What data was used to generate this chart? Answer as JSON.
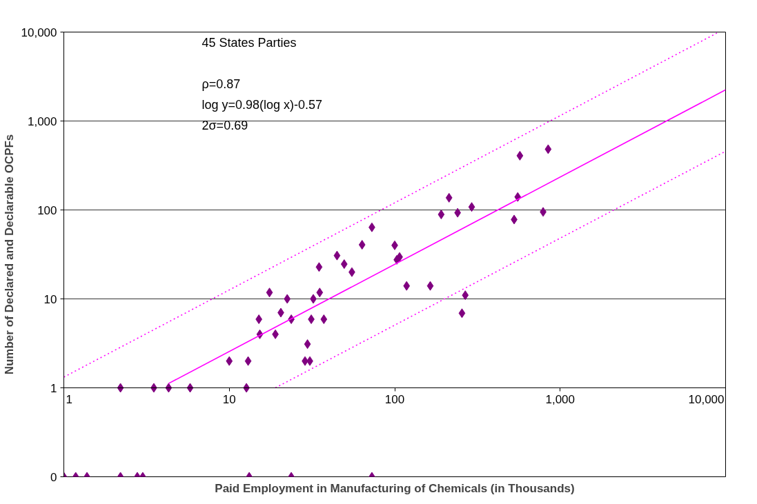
{
  "chart_data": {
    "type": "scatter",
    "xlabel": "Paid Employment in Manufacturing of Chemicals (in Thousands)",
    "ylabel": "Number of Declared and Declarable OCPFs",
    "annotations": [
      "45 States Parties",
      "ρ=0.87",
      "log y=0.98(log x)-0.57",
      "2σ=0.69"
    ],
    "log": "xy",
    "grid": "y",
    "marker": "diamond",
    "xlim": [
      1,
      10000
    ],
    "xticks": [
      1,
      10,
      100,
      {
        "value": 1000,
        "label": "1,000"
      },
      {
        "value": 10000,
        "label": "10,000"
      }
    ],
    "ylim": [
      0.1,
      10000
    ],
    "yticks": [
      {
        "value": 0.1,
        "label": "0"
      },
      1,
      10,
      100,
      {
        "value": 1000,
        "label": "1,000"
      },
      {
        "value": 10000,
        "label": "10,000"
      }
    ],
    "series": [
      {
        "color": "#800080",
        "x": [
          2.2,
          3.5,
          4.3,
          5.8,
          12.7,
          1.0,
          1.18,
          1.38,
          2.2,
          2.78,
          3.0,
          13.2,
          23.7,
          72.8,
          10,
          13,
          28.7,
          30.7,
          29.7,
          15.3,
          19,
          15.1,
          23.7,
          31.3,
          37.3,
          20.5,
          22.4,
          32.2,
          17.5,
          35.2,
          34.9,
          49.5,
          44.8,
          55.1,
          63.5,
          72.8,
          100,
          103,
          107,
          118,
          164,
          191,
          213,
          240,
          292,
          267,
          255,
          527,
          554,
          571,
          789,
          846
        ],
        "values": [
          1,
          1,
          1,
          1,
          1,
          0.1,
          0.1,
          0.1,
          0.1,
          0.1,
          0.1,
          0.1,
          0.1,
          0.1,
          2,
          2,
          2,
          2,
          3.1,
          4,
          4,
          5.9,
          5.9,
          5.9,
          5.9,
          7,
          10,
          10,
          11.8,
          11.8,
          22.8,
          24.6,
          30.7,
          20,
          40.6,
          63.8,
          40,
          27.5,
          29.6,
          14,
          14,
          89,
          137,
          93,
          108,
          11,
          6.9,
          78,
          140,
          407,
          95,
          482
        ]
      },
      {
        "type": "line",
        "marker": "none",
        "color": "#ff00ff",
        "line_style": "solid",
        "x": [
          4.3,
          10000
        ],
        "values": [
          1.12,
          2240
        ]
      },
      {
        "type": "line",
        "marker": "none",
        "color": "#ff00ff",
        "line_style": "dotted",
        "x": [
          1,
          9100
        ],
        "values": [
          1.32,
          10000
        ]
      },
      {
        "type": "line",
        "marker": "none",
        "color": "#ff00ff",
        "line_style": "dotted",
        "x": [
          19,
          10000
        ],
        "values": [
          1,
          457
        ]
      }
    ]
  }
}
